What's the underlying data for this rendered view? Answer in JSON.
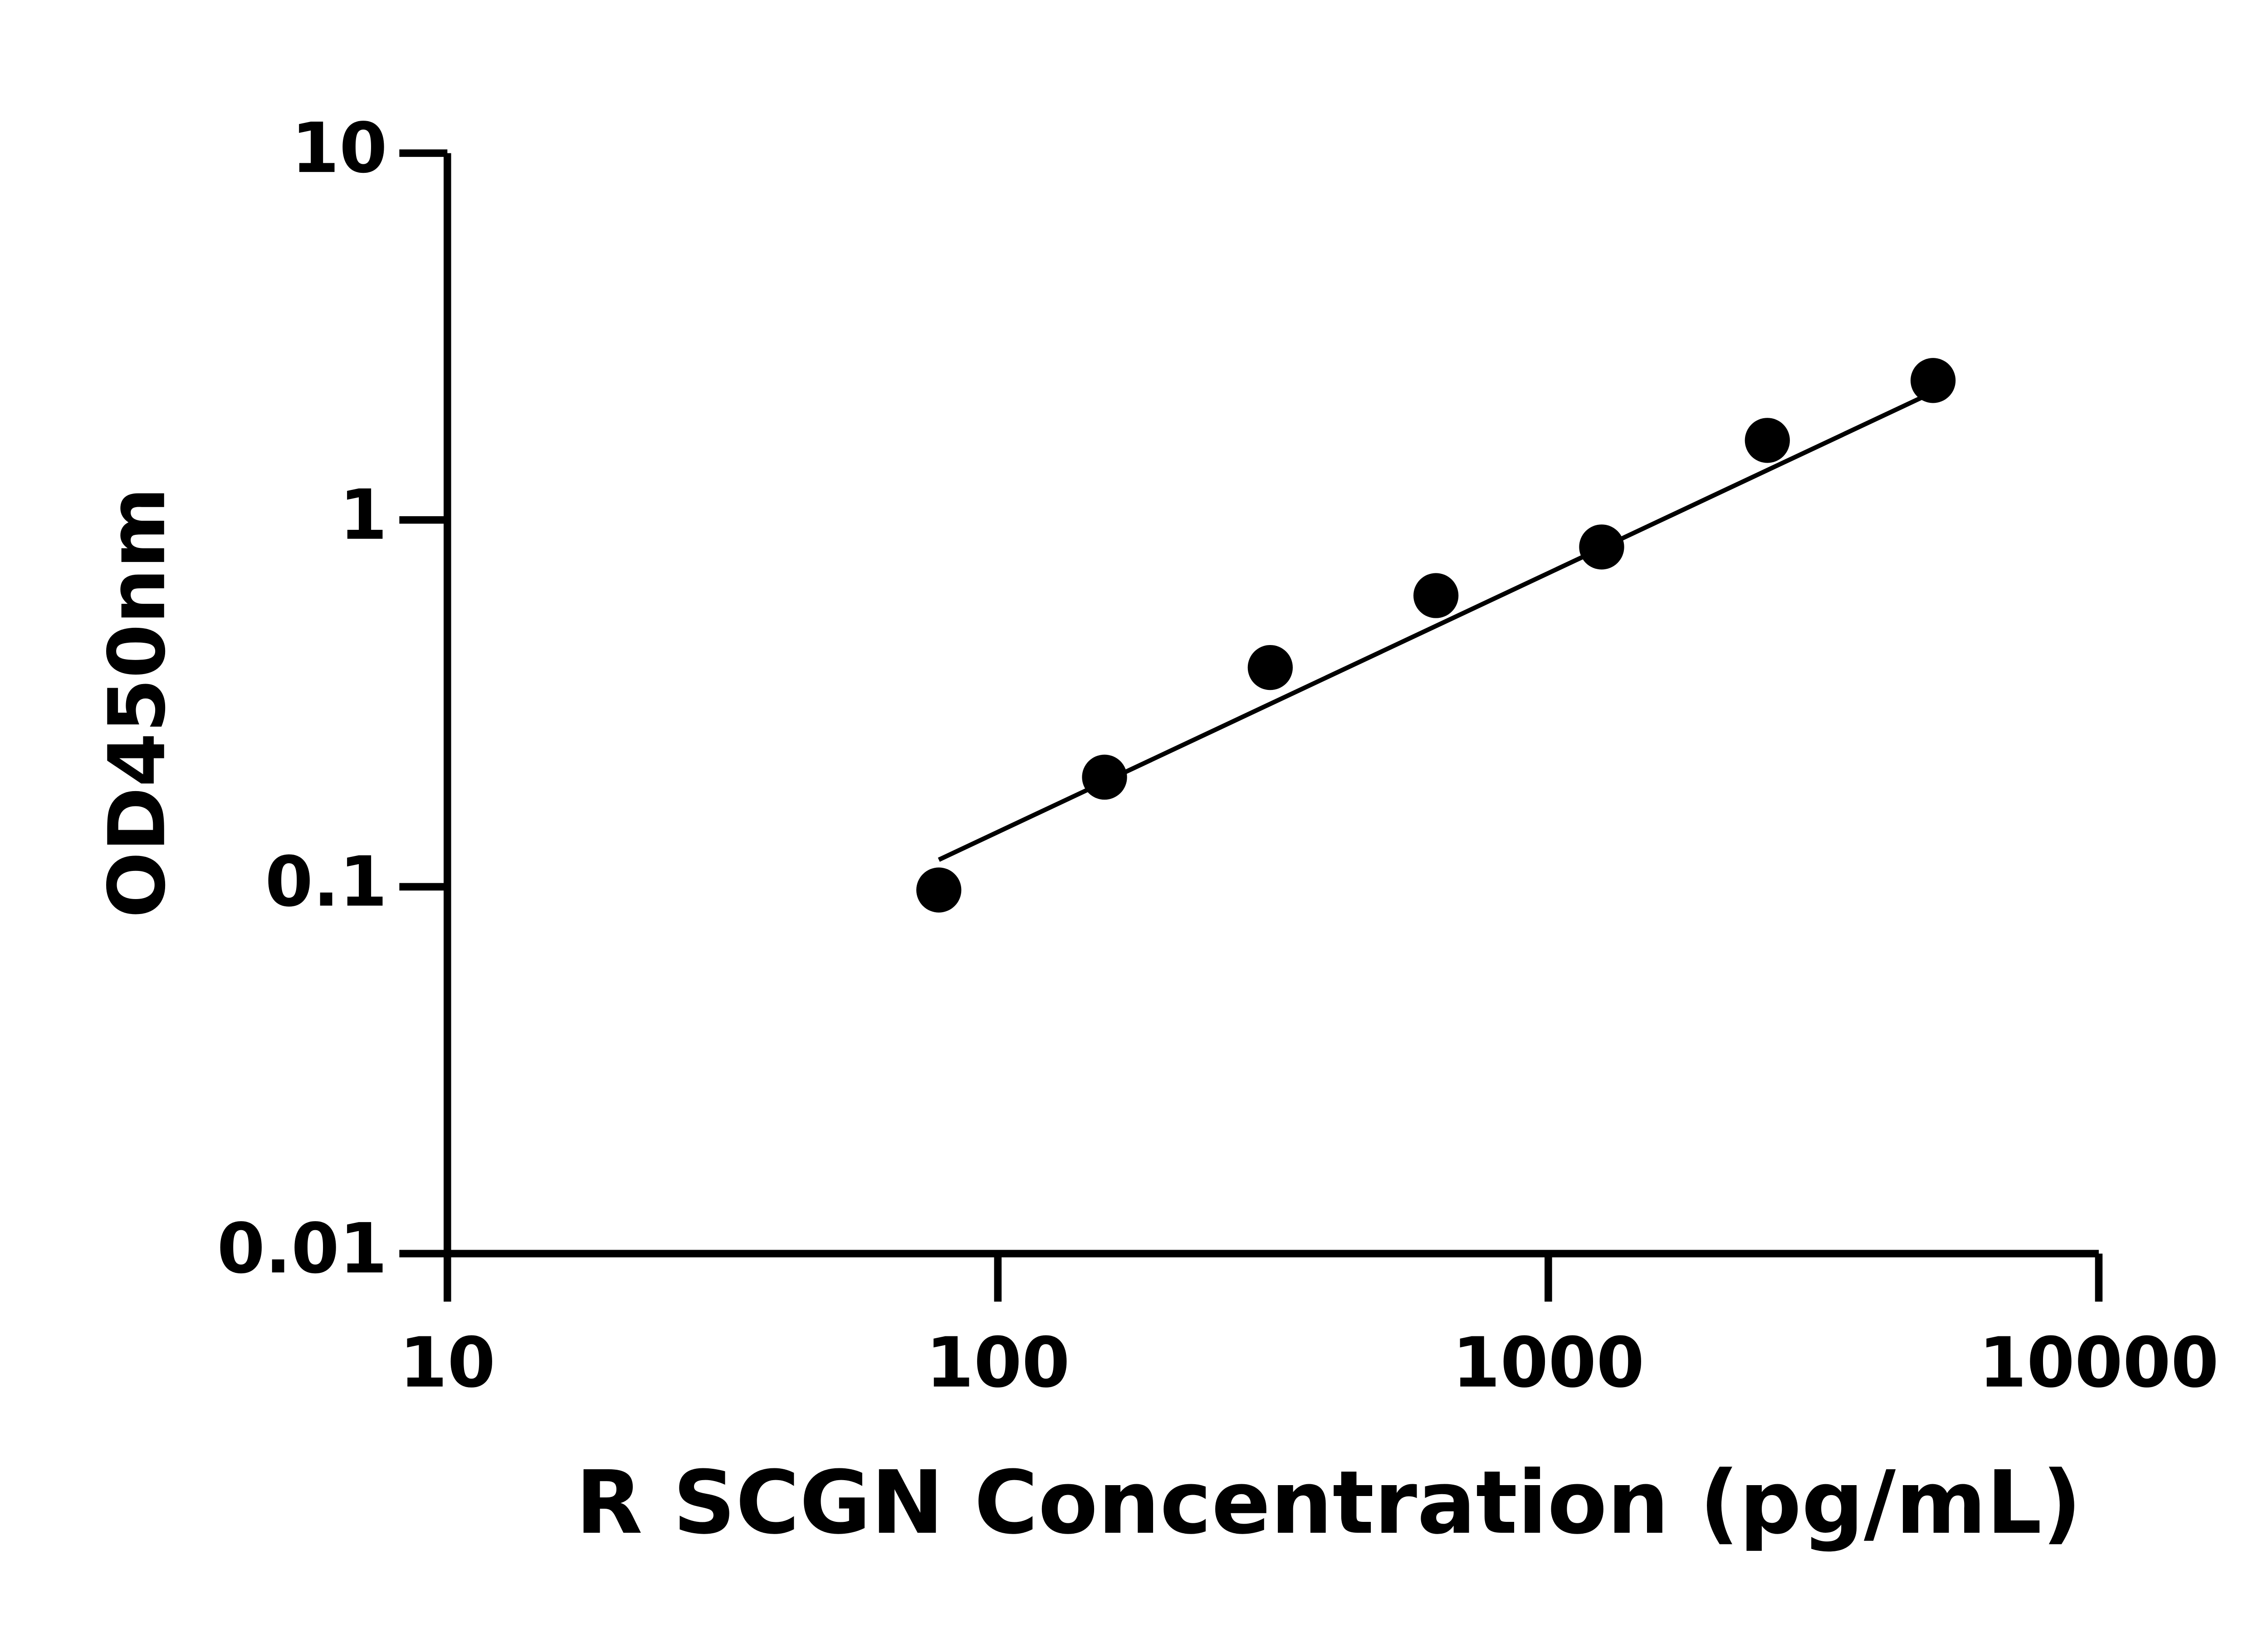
{
  "chart_data": {
    "type": "scatter",
    "x_label": "R SCGN Concentration (pg/mL)",
    "y_label": "OD450nm",
    "x": [
      78.125,
      156.25,
      312.5,
      625,
      1250,
      2500,
      5000
    ],
    "values": [
      0.098,
      0.199,
      0.396,
      0.622,
      0.844,
      1.648,
      2.4
    ],
    "color": "#000000",
    "fit": {
      "x": [
        78.125,
        5000
      ],
      "values": [
        0.1185,
        2.23
      ]
    },
    "xlog": true,
    "ylog": true,
    "xlim": [
      10,
      10000
    ],
    "ylim": [
      0.01,
      10
    ],
    "xticks": [
      10,
      100,
      1000,
      10000
    ],
    "yticks": [
      0.01,
      0.1,
      1,
      10
    ]
  }
}
